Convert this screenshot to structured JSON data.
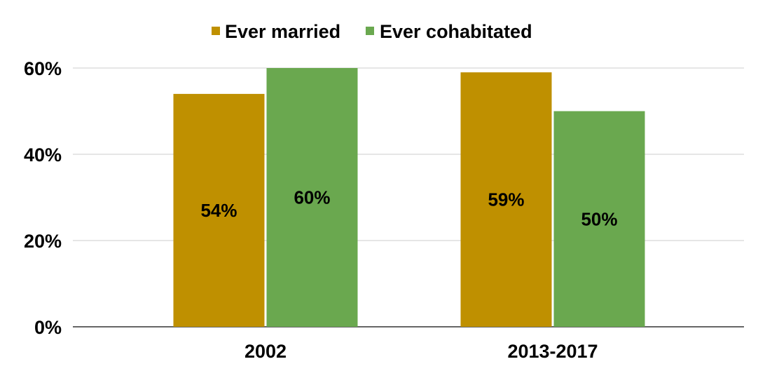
{
  "chart_data": {
    "type": "bar",
    "title": "",
    "xlabel": "",
    "ylabel": "",
    "categories": [
      "2002",
      "2013-2017"
    ],
    "series": [
      {
        "name": "Ever married",
        "values": [
          54,
          59
        ],
        "labels": [
          "54%",
          "59%"
        ],
        "color": "#bf9000"
      },
      {
        "name": "Ever cohabitated",
        "values": [
          60,
          50
        ],
        "labels": [
          "60%",
          "50%"
        ],
        "color": "#6aa84f"
      }
    ],
    "ylim": [
      0,
      60
    ],
    "yticks": [
      0,
      20,
      40,
      60
    ],
    "ytick_labels": [
      "0%",
      "20%",
      "40%",
      "60%"
    ],
    "grid": true,
    "legend": "top-center"
  },
  "colors": {
    "gridline": "#cccccc",
    "axis": "#333333"
  }
}
